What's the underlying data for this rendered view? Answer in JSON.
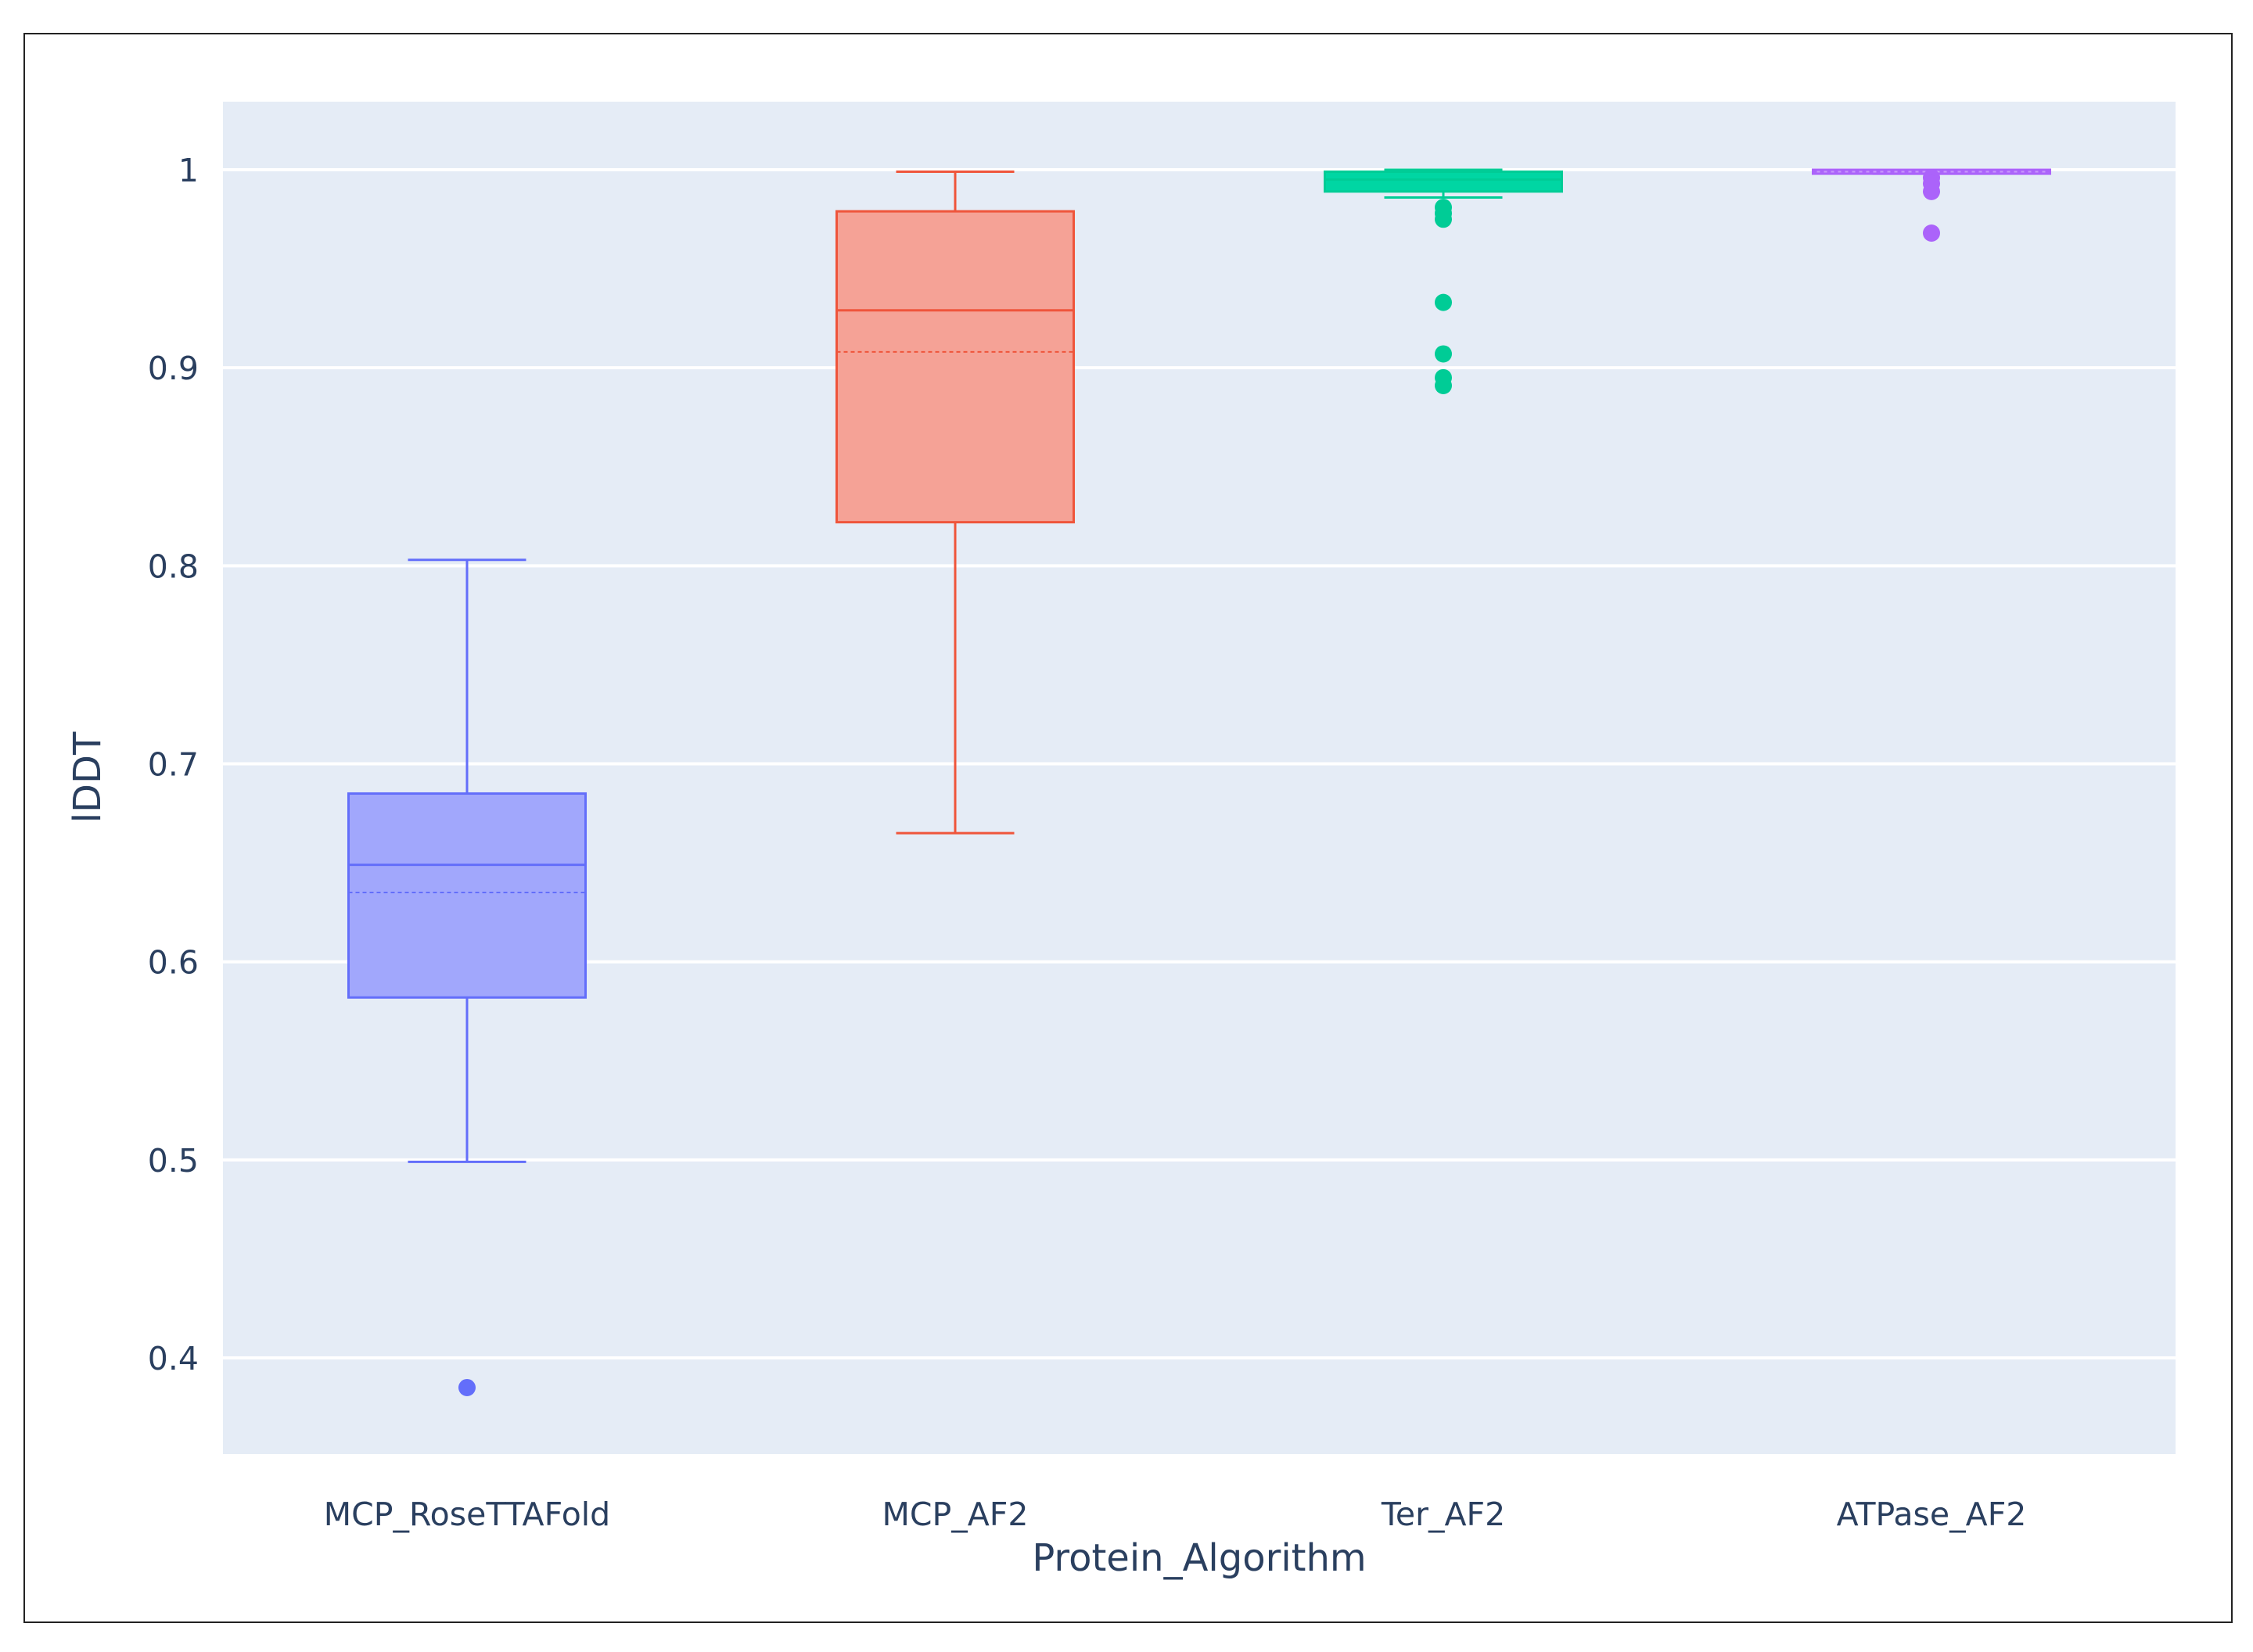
{
  "chart_data": {
    "type": "box",
    "title": "",
    "xlabel": "Protein_Algorithm",
    "ylabel": "lDDT",
    "ylim": [
      0.35,
      1.035
    ],
    "yticks": [
      0.4,
      0.5,
      0.6,
      0.7,
      0.8,
      0.9,
      1
    ],
    "ytick_labels": [
      "0.4",
      "0.5",
      "0.6",
      "0.7",
      "0.8",
      "0.9",
      "1"
    ],
    "grid": true,
    "boxmean": true,
    "categories": [
      "MCP_RoseTTAFold",
      "MCP_AF2",
      "Ter_AF2",
      "ATPase_AF2"
    ],
    "series": [
      {
        "name": "MCP_RoseTTAFold",
        "color": "#636efa",
        "fill": "#a1a7fc",
        "lowerfence": 0.499,
        "q1": 0.582,
        "median": 0.649,
        "mean": 0.635,
        "q3": 0.685,
        "upperfence": 0.803,
        "outliers": [
          0.385
        ]
      },
      {
        "name": "MCP_AF2",
        "color": "#ef553b",
        "fill": "#f5a296",
        "lowerfence": 0.665,
        "q1": 0.822,
        "median": 0.929,
        "mean": 0.908,
        "q3": 0.979,
        "upperfence": 0.999,
        "outliers": []
      },
      {
        "name": "Ter_AF2",
        "color": "#00cc96",
        "fill": "#00d6a3",
        "lowerfence": 0.986,
        "q1": 0.989,
        "median": 0.995,
        "mean": 0.989,
        "q3": 0.999,
        "upperfence": 1.0,
        "outliers": [
          0.981,
          0.978,
          0.975,
          0.933,
          0.907,
          0.895,
          0.891
        ]
      },
      {
        "name": "ATPase_AF2",
        "color": "#ab63fa",
        "fill": "#c997fb",
        "lowerfence": 0.998,
        "q1": 0.998,
        "median": 1.0,
        "mean": 0.999,
        "q3": 1.0,
        "upperfence": 1.0,
        "outliers": [
          0.996,
          0.993,
          0.989,
          0.968
        ]
      }
    ]
  }
}
